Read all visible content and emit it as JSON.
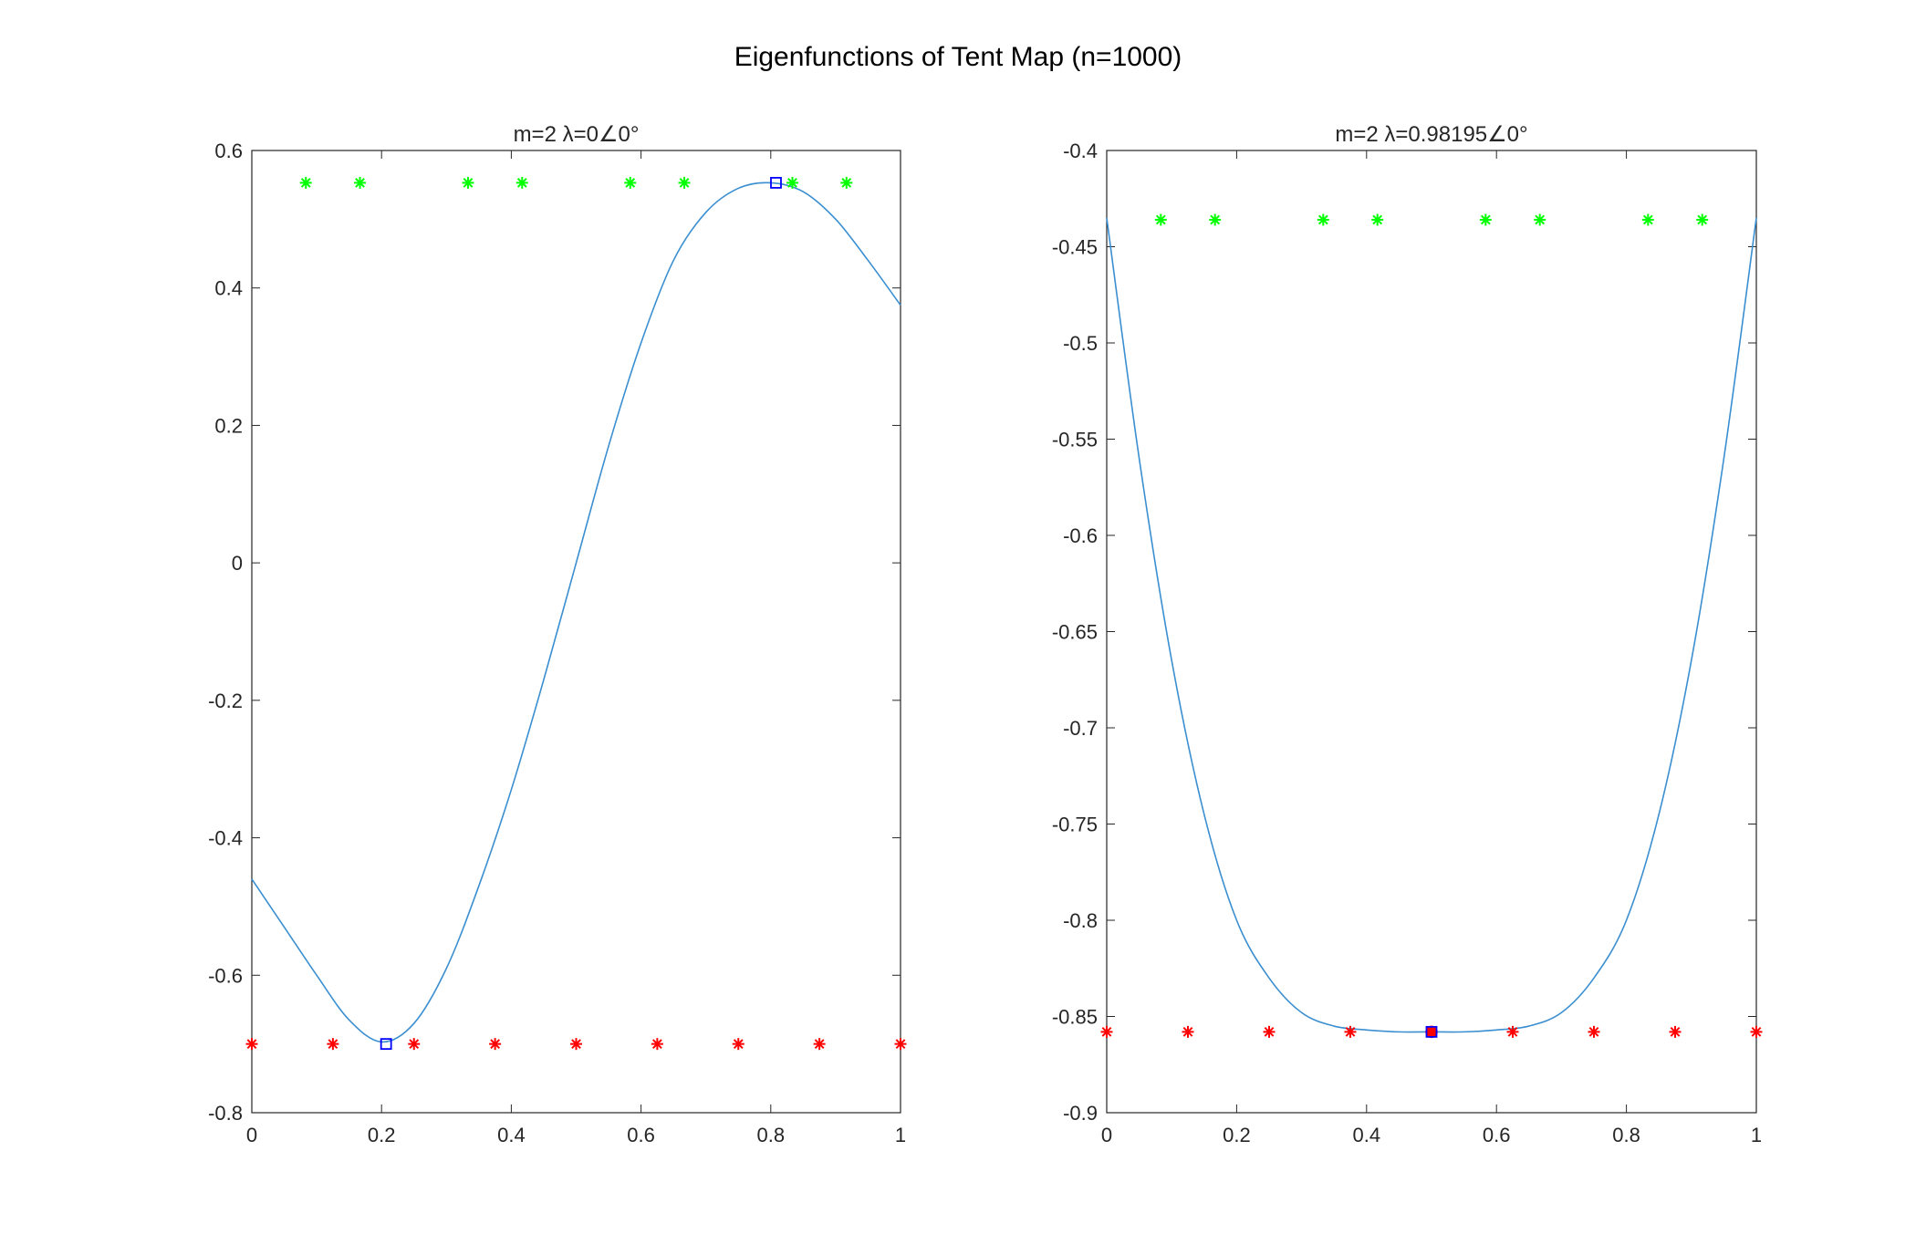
{
  "figure": {
    "title": "Eigenfunctions of Tent Map (n=1000)"
  },
  "colors": {
    "curve": "#3b8fd0",
    "green_marker": "#00ff00",
    "red_marker": "#ff0000",
    "square_marker": "#0000ff",
    "axis": "#262626"
  },
  "chart_data": [
    {
      "type": "line",
      "title": "m=2 λ=0∠0°",
      "xlim": [
        0,
        1
      ],
      "ylim": [
        -0.8,
        0.6
      ],
      "xticks": [
        0,
        0.2,
        0.4,
        0.6,
        0.8,
        1
      ],
      "xtick_labels": [
        "0",
        "0.2",
        "0.4",
        "0.6",
        "0.8",
        "1"
      ],
      "yticks": [
        -0.8,
        -0.6,
        -0.4,
        -0.2,
        0,
        0.2,
        0.4,
        0.6
      ],
      "ytick_labels": [
        "-0.8",
        "-0.6",
        "-0.4",
        "-0.2",
        "0",
        "0.2",
        "0.4",
        "0.6"
      ],
      "grid": false,
      "curve": {
        "x": [
          0,
          0.05,
          0.1,
          0.15,
          0.2,
          0.25,
          0.3,
          0.35,
          0.4,
          0.45,
          0.5,
          0.55,
          0.6,
          0.65,
          0.7,
          0.75,
          0.8,
          0.85,
          0.9,
          0.95,
          1
        ],
        "y": [
          -0.46,
          -0.53,
          -0.6,
          -0.665,
          -0.697,
          -0.67,
          -0.59,
          -0.47,
          -0.33,
          -0.17,
          0.0,
          0.17,
          0.32,
          0.44,
          0.51,
          0.545,
          0.553,
          0.54,
          0.5,
          0.44,
          0.375
        ]
      },
      "green_markers": {
        "x": [
          0.0833,
          0.1667,
          0.3333,
          0.4167,
          0.5833,
          0.6667,
          0.8333,
          0.9167
        ],
        "y": 0.553
      },
      "red_markers": {
        "x": [
          0,
          0.125,
          0.25,
          0.375,
          0.5,
          0.625,
          0.75,
          0.875,
          1
        ],
        "y": -0.7
      },
      "square_markers": [
        {
          "x": 0.207,
          "y": -0.7
        },
        {
          "x": 0.808,
          "y": 0.553
        }
      ],
      "circle_markers": []
    },
    {
      "type": "line",
      "title": "m=2 λ=0.98195∠0°",
      "xlim": [
        0,
        1
      ],
      "ylim": [
        -0.9,
        -0.4
      ],
      "xticks": [
        0,
        0.2,
        0.4,
        0.6,
        0.8,
        1
      ],
      "xtick_labels": [
        "0",
        "0.2",
        "0.4",
        "0.6",
        "0.8",
        "1"
      ],
      "yticks": [
        -0.9,
        -0.85,
        -0.8,
        -0.75,
        -0.7,
        -0.65,
        -0.6,
        -0.55,
        -0.5,
        -0.45,
        -0.4
      ],
      "ytick_labels": [
        "-0.9",
        "-0.85",
        "-0.8",
        "-0.75",
        "-0.7",
        "-0.65",
        "-0.6",
        "-0.55",
        "-0.5",
        "-0.45",
        "-0.4"
      ],
      "grid": false,
      "curve": {
        "x": [
          0,
          0.05,
          0.1,
          0.15,
          0.2,
          0.25,
          0.3,
          0.35,
          0.4,
          0.45,
          0.5,
          0.55,
          0.6,
          0.65,
          0.7,
          0.75,
          0.8,
          0.85,
          0.9,
          0.95,
          1
        ],
        "y": [
          -0.435,
          -0.56,
          -0.665,
          -0.745,
          -0.8,
          -0.83,
          -0.848,
          -0.855,
          -0.857,
          -0.858,
          -0.858,
          -0.858,
          -0.857,
          -0.855,
          -0.848,
          -0.83,
          -0.8,
          -0.745,
          -0.665,
          -0.56,
          -0.435
        ]
      },
      "green_markers": {
        "x": [
          0.0833,
          0.1667,
          0.3333,
          0.4167,
          0.5833,
          0.6667,
          0.8333,
          0.9167
        ],
        "y": -0.436
      },
      "red_markers": {
        "x": [
          0,
          0.125,
          0.25,
          0.375,
          0.5,
          0.625,
          0.75,
          0.875,
          1
        ],
        "y": -0.858
      },
      "square_markers": [
        {
          "x": 0.5,
          "y": -0.858
        }
      ],
      "circle_markers": [
        {
          "x": 0.5,
          "y": -0.858
        }
      ]
    }
  ]
}
